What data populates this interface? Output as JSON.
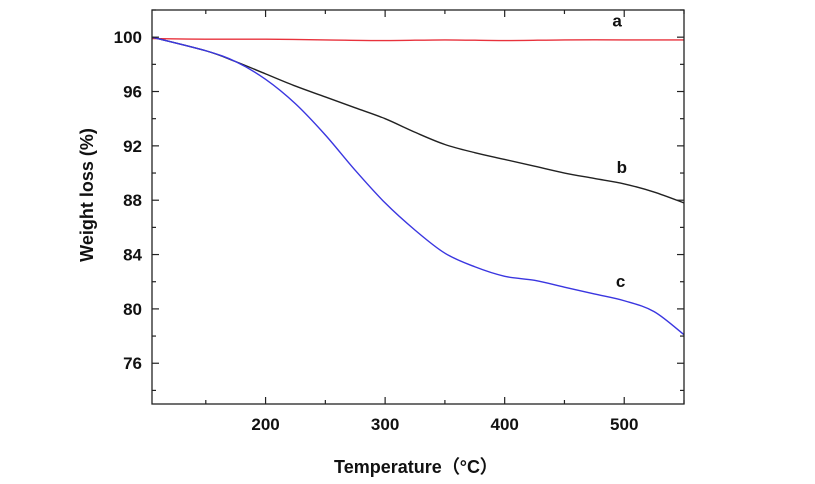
{
  "chart_data": {
    "type": "line",
    "title": "",
    "xlabel": "Temperature（°C）",
    "ylabel": "Weight loss (%)",
    "xlim": [
      105,
      550
    ],
    "ylim": [
      73,
      102
    ],
    "x_ticks": [
      200,
      300,
      400,
      500
    ],
    "x_tick_labels": [
      "200",
      "300",
      "400",
      "500"
    ],
    "y_ticks": [
      76,
      80,
      84,
      88,
      92,
      96,
      100
    ],
    "y_tick_labels": [
      "76",
      "80",
      "84",
      "88",
      "92",
      "96",
      "100"
    ],
    "grid": false,
    "legend": "none",
    "series": [
      {
        "name": "a",
        "color": "#e8323c",
        "x": [
          105,
          150,
          200,
          250,
          300,
          350,
          400,
          450,
          500,
          550
        ],
        "y": [
          99.9,
          99.85,
          99.85,
          99.8,
          99.75,
          99.8,
          99.75,
          99.8,
          99.8,
          99.8
        ]
      },
      {
        "name": "b",
        "color": "#222222",
        "x": [
          105,
          150,
          175,
          200,
          225,
          250,
          275,
          300,
          325,
          350,
          375,
          400,
          425,
          450,
          475,
          500,
          525,
          550
        ],
        "y": [
          100,
          99.0,
          98.2,
          97.3,
          96.4,
          95.6,
          94.8,
          94.0,
          93.0,
          92.1,
          91.5,
          91.0,
          90.5,
          90.0,
          89.6,
          89.2,
          88.6,
          87.8
        ]
      },
      {
        "name": "c",
        "color": "#3a36e0",
        "x": [
          105,
          150,
          175,
          200,
          225,
          250,
          275,
          300,
          325,
          350,
          375,
          400,
          425,
          450,
          475,
          500,
          525,
          550
        ],
        "y": [
          100,
          99.0,
          98.2,
          96.9,
          95.1,
          92.8,
          90.2,
          87.8,
          85.8,
          84.1,
          83.1,
          82.4,
          82.1,
          81.6,
          81.1,
          80.6,
          79.8,
          78.1
        ]
      }
    ]
  }
}
